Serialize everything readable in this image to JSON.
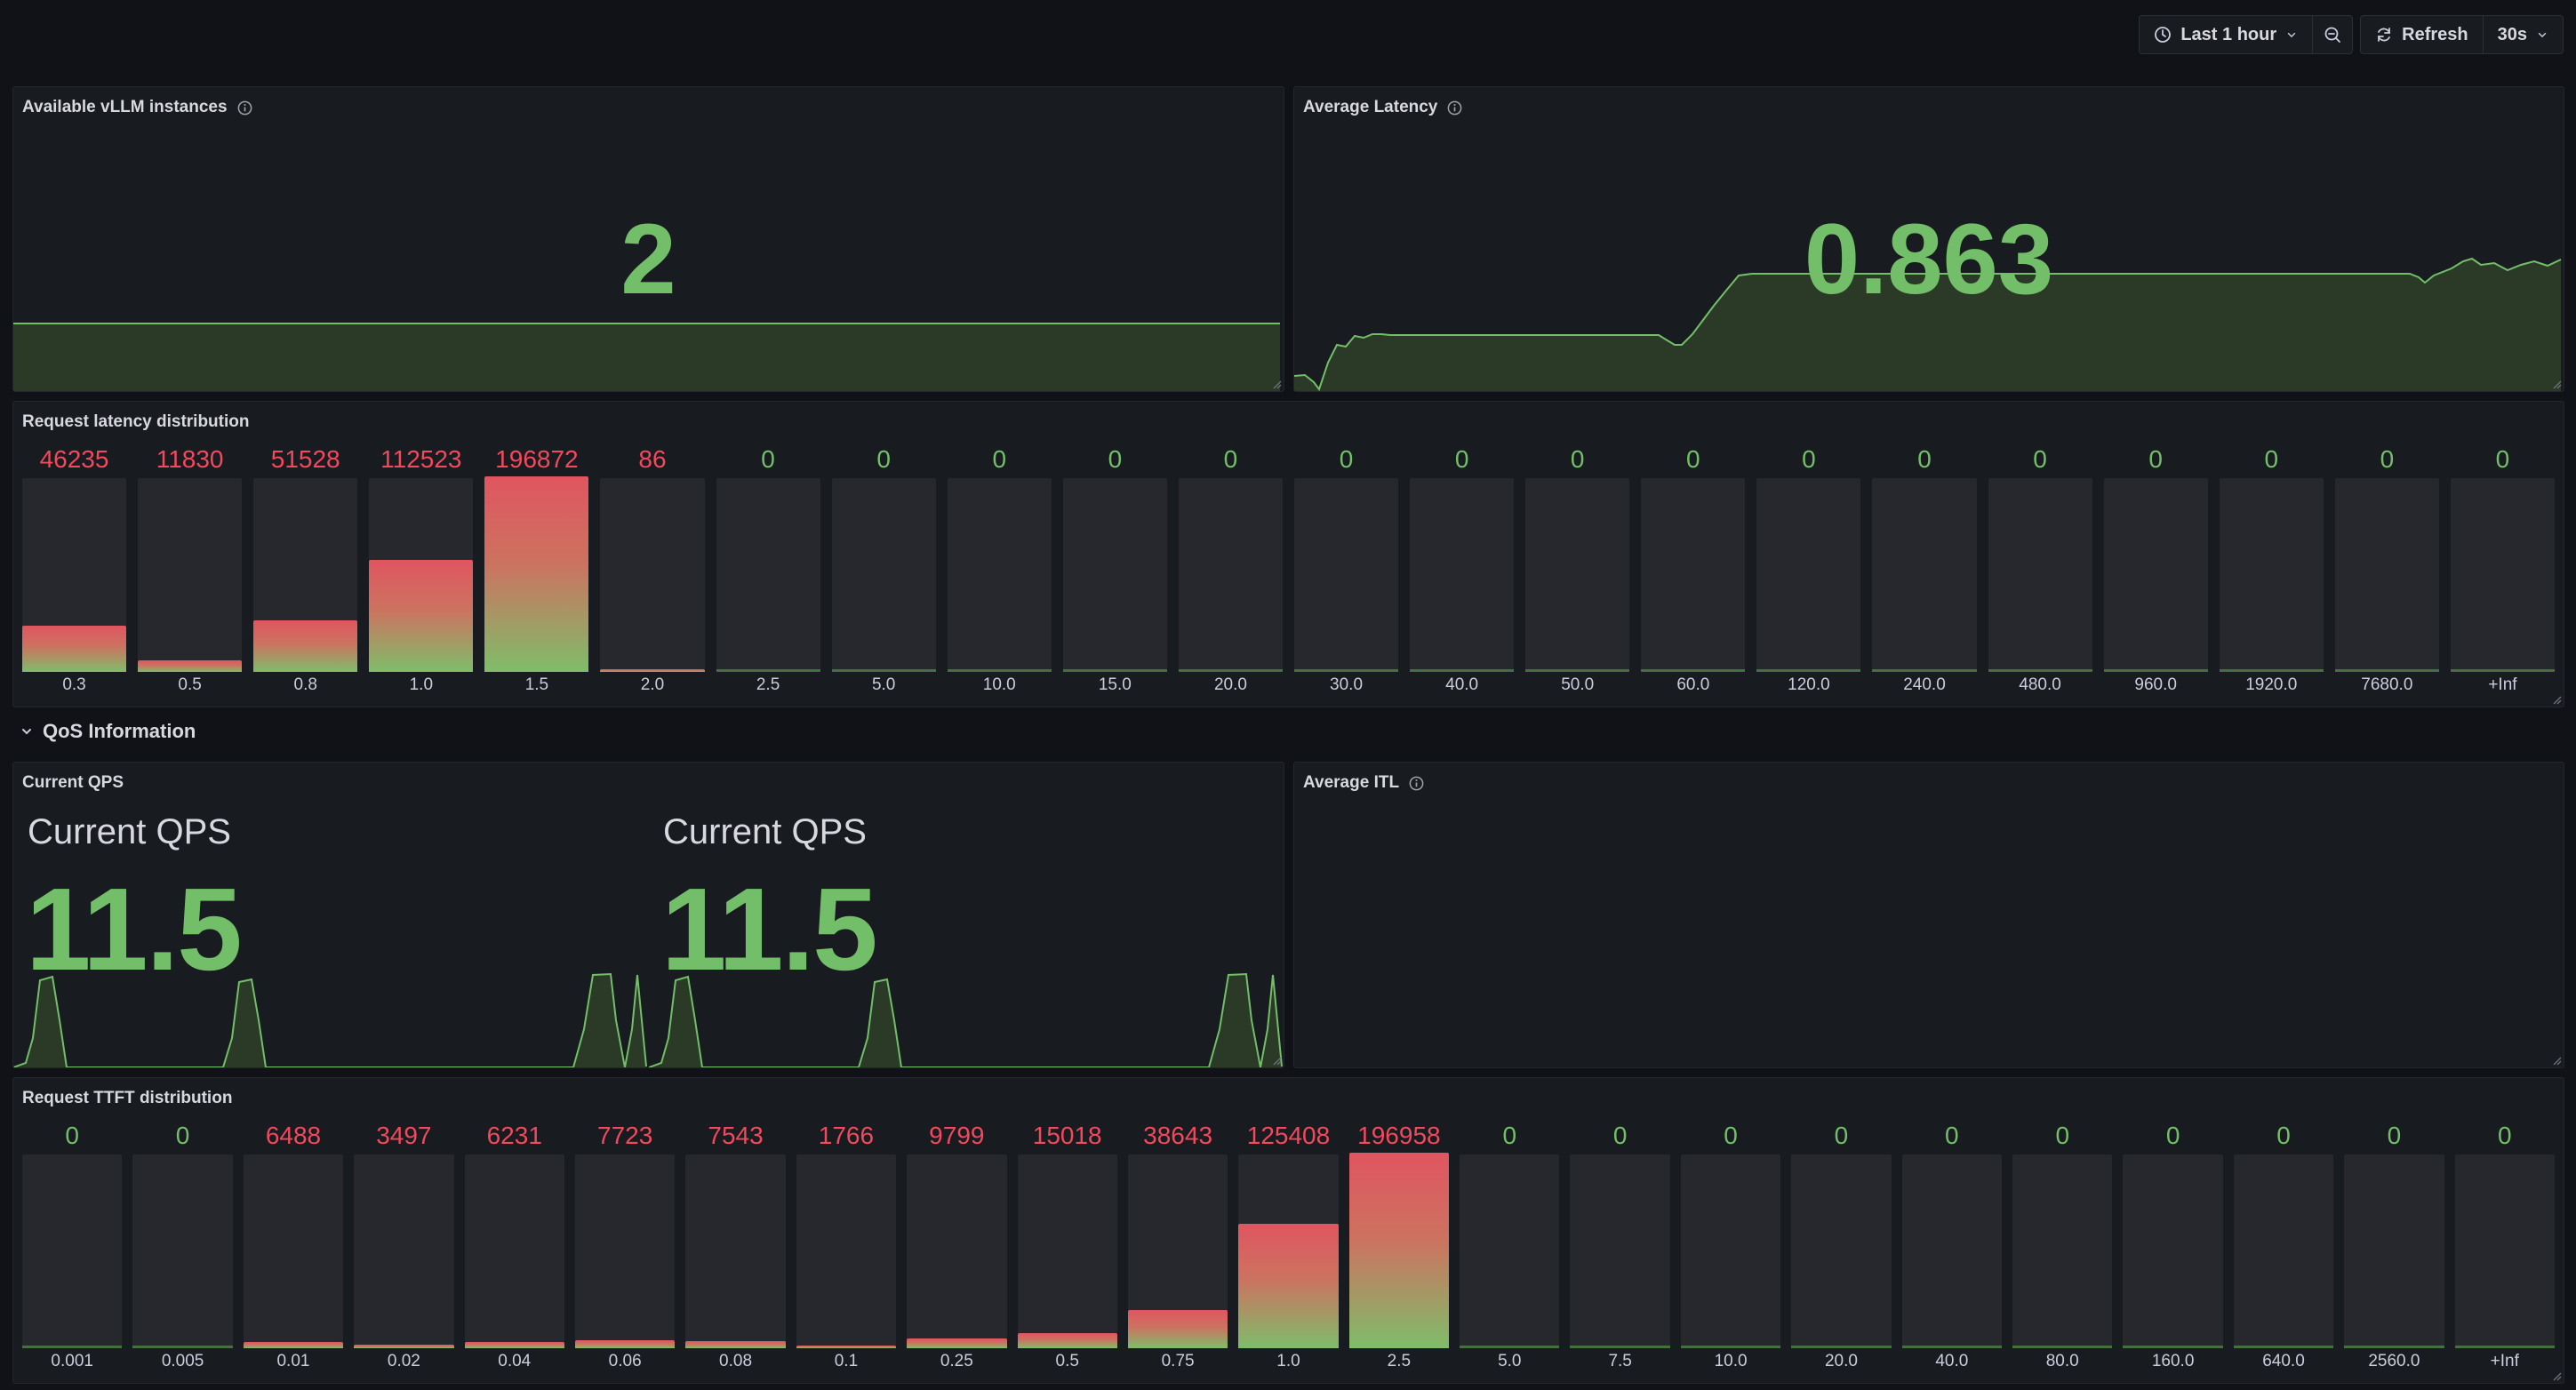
{
  "toolbar": {
    "time_range": "Last 1 hour",
    "refresh_label": "Refresh",
    "refresh_interval": "30s"
  },
  "panels": {
    "instances": {
      "title": "Available vLLM instances",
      "value": "2"
    },
    "latency": {
      "title": "Average Latency",
      "value": "0.863"
    },
    "latency_dist": {
      "title": "Request latency distribution",
      "buckets": [
        {
          "label": "0.3",
          "value": "46235"
        },
        {
          "label": "0.5",
          "value": "11830"
        },
        {
          "label": "0.8",
          "value": "51528"
        },
        {
          "label": "1.0",
          "value": "112523"
        },
        {
          "label": "1.5",
          "value": "196872"
        },
        {
          "label": "2.0",
          "value": "86"
        },
        {
          "label": "2.5",
          "value": "0"
        },
        {
          "label": "5.0",
          "value": "0"
        },
        {
          "label": "10.0",
          "value": "0"
        },
        {
          "label": "15.0",
          "value": "0"
        },
        {
          "label": "20.0",
          "value": "0"
        },
        {
          "label": "30.0",
          "value": "0"
        },
        {
          "label": "40.0",
          "value": "0"
        },
        {
          "label": "50.0",
          "value": "0"
        },
        {
          "label": "60.0",
          "value": "0"
        },
        {
          "label": "120.0",
          "value": "0"
        },
        {
          "label": "240.0",
          "value": "0"
        },
        {
          "label": "480.0",
          "value": "0"
        },
        {
          "label": "960.0",
          "value": "0"
        },
        {
          "label": "1920.0",
          "value": "0"
        },
        {
          "label": "7680.0",
          "value": "0"
        },
        {
          "label": "+Inf",
          "value": "0"
        }
      ]
    },
    "qos_row": {
      "title": "QoS Information"
    },
    "qps": {
      "title": "Current QPS",
      "stats": [
        {
          "title": "Current QPS",
          "value": "11.5"
        },
        {
          "title": "Current QPS",
          "value": "11.5"
        }
      ]
    },
    "itl": {
      "title": "Average ITL"
    },
    "ttft_dist": {
      "title": "Request TTFT distribution",
      "buckets": [
        {
          "label": "0.001",
          "value": "0"
        },
        {
          "label": "0.005",
          "value": "0"
        },
        {
          "label": "0.01",
          "value": "6488"
        },
        {
          "label": "0.02",
          "value": "3497"
        },
        {
          "label": "0.04",
          "value": "6231"
        },
        {
          "label": "0.06",
          "value": "7723"
        },
        {
          "label": "0.08",
          "value": "7543"
        },
        {
          "label": "0.1",
          "value": "1766"
        },
        {
          "label": "0.25",
          "value": "9799"
        },
        {
          "label": "0.5",
          "value": "15018"
        },
        {
          "label": "0.75",
          "value": "38643"
        },
        {
          "label": "1.0",
          "value": "125408"
        },
        {
          "label": "2.5",
          "value": "196958"
        },
        {
          "label": "5.0",
          "value": "0"
        },
        {
          "label": "7.5",
          "value": "0"
        },
        {
          "label": "10.0",
          "value": "0"
        },
        {
          "label": "20.0",
          "value": "0"
        },
        {
          "label": "40.0",
          "value": "0"
        },
        {
          "label": "80.0",
          "value": "0"
        },
        {
          "label": "160.0",
          "value": "0"
        },
        {
          "label": "640.0",
          "value": "0"
        },
        {
          "label": "2560.0",
          "value": "0"
        },
        {
          "label": "+Inf",
          "value": "0"
        }
      ]
    }
  },
  "colors": {
    "green": "#73bf69",
    "red": "#f2495c",
    "panel_bg": "#181b1f",
    "page_bg": "#111217"
  }
}
